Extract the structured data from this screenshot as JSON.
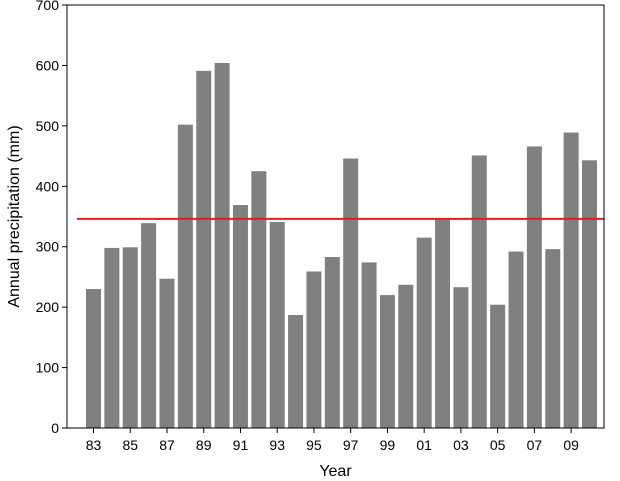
{
  "chart_data": {
    "type": "bar",
    "xlabel": "Year",
    "ylabel": "Annual precipitation (mm)",
    "ylim": [
      0,
      700
    ],
    "yticks": [
      0,
      100,
      200,
      300,
      400,
      500,
      600,
      700
    ],
    "categories": [
      "1983",
      "1984",
      "1985",
      "1986",
      "1987",
      "1988",
      "1989",
      "1990",
      "1991",
      "1992",
      "1993",
      "1994",
      "1995",
      "1996",
      "1997",
      "1998",
      "1999",
      "2000",
      "2001",
      "2002",
      "2003",
      "2004",
      "2005",
      "2006",
      "2007",
      "2008",
      "2009",
      "2010"
    ],
    "xtick_labels": [
      "83",
      "",
      "85",
      "",
      "87",
      "",
      "89",
      "",
      "91",
      "",
      "93",
      "",
      "95",
      "",
      "97",
      "",
      "99",
      "",
      "01",
      "",
      "03",
      "",
      "05",
      "",
      "07",
      "",
      "09",
      ""
    ],
    "values": [
      230,
      298,
      299,
      339,
      247,
      502,
      591,
      604,
      369,
      425,
      341,
      187,
      259,
      283,
      446,
      274,
      220,
      237,
      315,
      346,
      233,
      451,
      204,
      292,
      466,
      296,
      489,
      443
    ],
    "reference_line": 346,
    "grid": false,
    "legend": "none",
    "colors": {
      "bar": "#808080",
      "reference_line": "#e02020",
      "axis": "#000000"
    }
  }
}
